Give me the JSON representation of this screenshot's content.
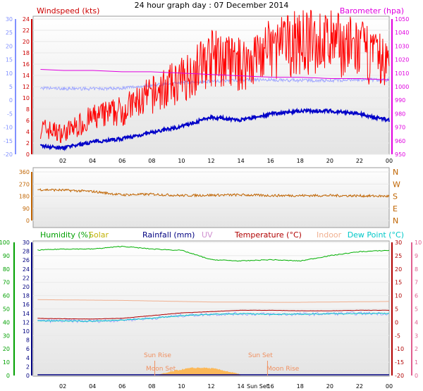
{
  "title": "24 hour graph day : 07 December 2014",
  "colors": {
    "wind": "#ff0000",
    "wind_avg": "#0000c8",
    "temp_dim": "#a0a8ff",
    "baro": "#e000e0",
    "dir": "#c06400",
    "humidity": "#00b000",
    "solar": "#c0b000",
    "rain": "#000080",
    "uv": "#d090d0",
    "temperature": "#b00000",
    "indoor": "#f0b090",
    "dewpoint": "#00c8c8",
    "sun": "#ffb040"
  },
  "top_panel": {
    "left_title": "Windspeed (kts)",
    "right_title": "Barometer (hpa)",
    "left_ticks": [
      "24",
      "22",
      "20",
      "18",
      "16",
      "14",
      "12",
      "10",
      "8",
      "6",
      "4",
      "2",
      "0"
    ],
    "left2_ticks": [
      "30",
      "25",
      "20",
      "15",
      "10",
      "5",
      "0",
      "-5",
      "-10",
      "-15",
      "-20"
    ],
    "right_ticks": [
      "1050",
      "1040",
      "1030",
      "1020",
      "1010",
      "1000",
      "990",
      "980",
      "970",
      "960",
      "950"
    ]
  },
  "dir_panel": {
    "left_ticks": [
      "360",
      "270",
      "180",
      "90",
      "0"
    ],
    "right_ticks": [
      "N",
      "W",
      "S",
      "E",
      "N"
    ]
  },
  "bottom_panel": {
    "labels": {
      "humidity": "Humidity (%)",
      "solar": "Solar",
      "rain": "Rainfall (mm)",
      "uv": "UV",
      "temperature": "Temperature (°C)",
      "indoor": "Indoor",
      "dewpoint": "Dew Point (°C)"
    },
    "hum_ticks": [
      "100",
      "90",
      "80",
      "70",
      "60",
      "50",
      "40",
      "30",
      "20",
      "10",
      "0"
    ],
    "rain_ticks": [
      "30",
      "28",
      "26",
      "24",
      "22",
      "20",
      "18",
      "16",
      "14",
      "12",
      "10",
      "8",
      "6",
      "4",
      "2",
      "0"
    ],
    "temp_ticks": [
      "30",
      "25",
      "20",
      "15",
      "10",
      "5",
      "0",
      "-5",
      "-10",
      "-15",
      "-20"
    ],
    "uv_ticks": [
      "10",
      "9",
      "8",
      "7",
      "6",
      "5",
      "4",
      "3",
      "2",
      "1",
      "0"
    ],
    "annotations": {
      "sun_rise": "Sun Rise",
      "sun_set": "Sun Set",
      "moon_set": "Moon Set",
      "moon_rise": "Moon Rise",
      "sun_set_short": "Sun Set"
    }
  },
  "x_ticks": [
    "02",
    "04",
    "06",
    "08",
    "10",
    "12",
    "14",
    "16",
    "18",
    "20",
    "22",
    "00"
  ],
  "chart_data": [
    {
      "type": "line",
      "title": "24 hour graph day : 07 December 2014",
      "x": [
        "00",
        "02",
        "04",
        "06",
        "08",
        "10",
        "12",
        "14",
        "16",
        "18",
        "20",
        "22",
        "00"
      ],
      "series": [
        {
          "name": "Windspeed (kts)",
          "unit": "kts",
          "values": [
            3,
            2,
            4,
            5,
            7,
            9,
            12,
            11,
            13,
            14,
            14,
            13,
            11
          ]
        },
        {
          "name": "Barometer (hpa)",
          "unit": "hpa",
          "values": [
            1013,
            1012,
            1012,
            1011,
            1011,
            1010,
            1009,
            1008,
            1007,
            1007,
            1006,
            1006,
            1005
          ]
        }
      ],
      "ylim_left": [
        0,
        25
      ],
      "ylim_right": [
        950,
        1050
      ]
    },
    {
      "type": "line",
      "x": [
        "00",
        "02",
        "04",
        "06",
        "08",
        "10",
        "12",
        "14",
        "16",
        "18",
        "20",
        "22",
        "00"
      ],
      "series": [
        {
          "values": [
            230,
            225,
            215,
            190,
            195,
            185,
            188,
            190,
            185,
            185,
            185,
            183,
            180
          ]
        }
      ],
      "ylim": [
        0,
        360
      ]
    },
    {
      "type": "line",
      "x": [
        "00",
        "02",
        "04",
        "06",
        "08",
        "10",
        "12",
        "14",
        "16",
        "18",
        "20",
        "22",
        "00"
      ],
      "series": [
        {
          "name": "Humidity (%)",
          "unit": "%",
          "values": [
            94,
            95,
            95,
            97,
            95,
            94,
            87,
            86,
            87,
            86,
            90,
            93,
            94
          ]
        },
        {
          "name": "Temperature (°C)",
          "unit": "°C",
          "values": [
            1.5,
            1.3,
            1.2,
            1.5,
            2.5,
            3.5,
            4.0,
            4.5,
            4.5,
            4.3,
            4.3,
            4.5,
            4.5
          ]
        },
        {
          "name": "Dew Point (°C)",
          "unit": "°C",
          "values": [
            0.5,
            0.5,
            0.4,
            0.8,
            1.5,
            2.5,
            3.0,
            3.2,
            3.0,
            3.0,
            3.2,
            3.3,
            3.3
          ]
        },
        {
          "name": "Indoor",
          "unit": "°C",
          "values": [
            8.5,
            8.4,
            8.3,
            8.2,
            8.0,
            7.8,
            7.6,
            7.6,
            7.5,
            7.5,
            7.6,
            7.7,
            7.8
          ]
        },
        {
          "name": "Rainfall (mm)",
          "unit": "mm",
          "values": [
            0,
            0,
            0,
            0,
            0,
            0,
            0,
            0,
            0,
            0,
            0,
            0,
            0
          ]
        },
        {
          "name": "Solar",
          "values": [
            0,
            0,
            0,
            0,
            0,
            10,
            20,
            15,
            0,
            0,
            0,
            0,
            0
          ]
        }
      ],
      "ylim_humidity": [
        0,
        100
      ],
      "ylim_temp": [
        -20,
        30
      ]
    }
  ]
}
